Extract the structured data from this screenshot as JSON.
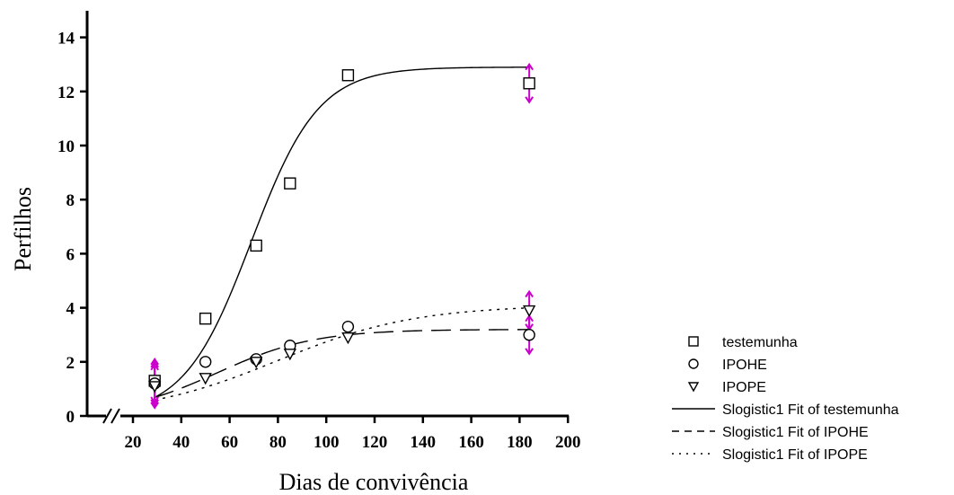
{
  "chart_data": {
    "type": "scatter",
    "title": "",
    "xlabel": "Dias de convivência",
    "ylabel": "Perfilhos",
    "xlim": [
      0,
      200
    ],
    "ylim": [
      0,
      15
    ],
    "x_axis_break": true,
    "x_ticks": [
      20,
      40,
      60,
      80,
      100,
      120,
      140,
      160,
      180,
      200
    ],
    "y_ticks": [
      0,
      2,
      4,
      6,
      8,
      10,
      12,
      14
    ],
    "grid": false,
    "legend_position": "bottom-right",
    "series": [
      {
        "name": "testemunha",
        "marker": "square",
        "x": [
          29,
          50,
          71,
          85,
          109,
          184
        ],
        "y": [
          1.3,
          3.6,
          6.3,
          8.6,
          12.6,
          12.3
        ],
        "err": [
          0.8,
          0,
          0,
          0,
          0,
          0.7
        ]
      },
      {
        "name": "IPOHE",
        "marker": "circle",
        "x": [
          29,
          50,
          71,
          85,
          109,
          184
        ],
        "y": [
          1.2,
          2.0,
          2.1,
          2.6,
          3.3,
          3.0
        ],
        "err": [
          0.8,
          0,
          0,
          0,
          0,
          0.7
        ]
      },
      {
        "name": "IPOPE",
        "marker": "triangle-down",
        "x": [
          29,
          50,
          71,
          85,
          109,
          184
        ],
        "y": [
          1.1,
          1.4,
          2.0,
          2.3,
          2.9,
          3.9
        ],
        "err": [
          0.8,
          0,
          0,
          0,
          0,
          0.7
        ]
      }
    ],
    "fits": [
      {
        "name": "Slogistic1 Fit of testemunha",
        "style": "solid",
        "a": 12.9,
        "xc": 69,
        "k": 0.072,
        "x_range": [
          29,
          184
        ]
      },
      {
        "name": "Slogistic1 Fit of IPOHE",
        "style": "dashed",
        "a": 3.2,
        "xc": 55,
        "k": 0.05,
        "x_range": [
          29,
          184
        ]
      },
      {
        "name": "Slogistic1 Fit of IPOPE",
        "style": "dotted",
        "a": 4.1,
        "xc": 80,
        "k": 0.035,
        "x_range": [
          29,
          184
        ]
      }
    ],
    "colors": {
      "data": "#000000",
      "error_bars": "#cc00cc"
    }
  }
}
